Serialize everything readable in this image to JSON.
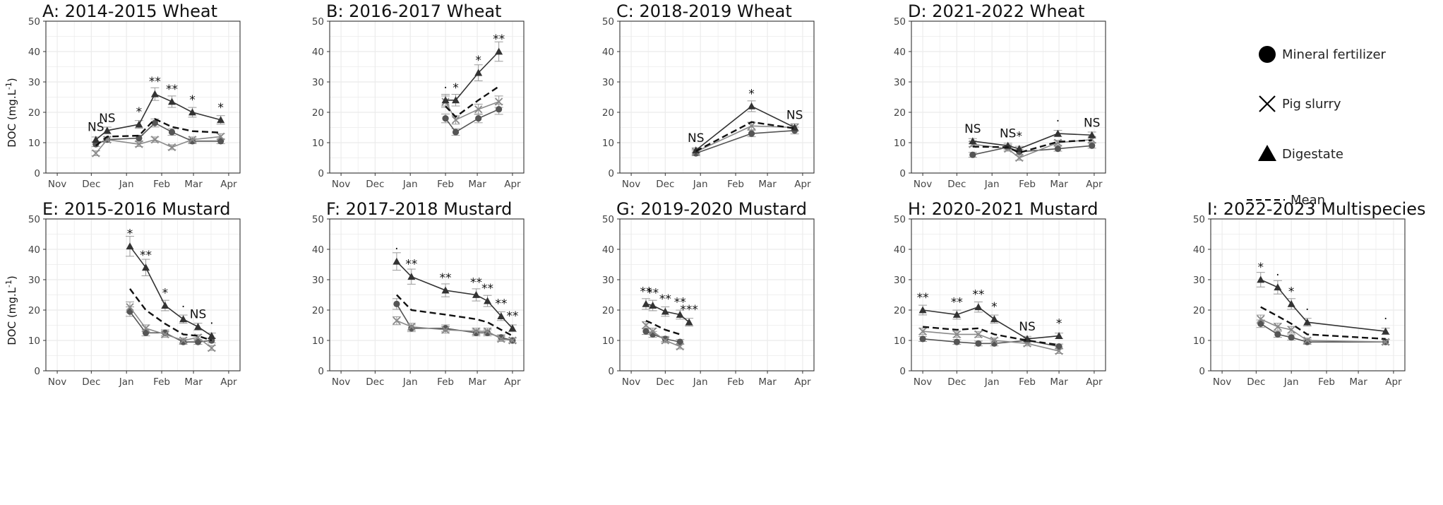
{
  "y_axis_label": "DOC (mg.L",
  "y_axis_label_sup": "-1",
  "y_axis_label_end": ")",
  "chart_data": [
    {
      "type": "line",
      "title": "A: 2014-2015 Wheat",
      "x_ticks": [
        "Nov",
        "Dec",
        "Jan",
        "Feb",
        "Mar",
        "Apr"
      ],
      "y_ticks": [
        "0",
        "10",
        "20",
        "30",
        "40",
        "50"
      ],
      "ylim": [
        0,
        50
      ],
      "grid": true,
      "x": [
        "2014-12-05",
        "2014-12-15",
        "2015-01-12",
        "2015-01-26",
        "2015-02-10",
        "2015-02-28",
        "2015-03-25"
      ],
      "series": [
        {
          "name": "Mineral fertilizer",
          "values": [
            9.5,
            11,
            11.5,
            16.5,
            13.5,
            10.5,
            10.5
          ]
        },
        {
          "name": "Pig slurry",
          "values": [
            6.5,
            11,
            9.5,
            11,
            8.5,
            11,
            12
          ]
        },
        {
          "name": "Digestate",
          "values": [
            11,
            14,
            16,
            26,
            23.5,
            20,
            17.5
          ]
        },
        {
          "name": "Mean",
          "values": [
            9,
            12,
            12.3,
            17.8,
            15.2,
            13.8,
            13.3
          ]
        }
      ],
      "significance": [
        "NS",
        "NS",
        "*",
        "**",
        "**",
        "*",
        "*"
      ]
    },
    {
      "type": "line",
      "title": "B: 2016-2017 Wheat",
      "x_ticks": [
        "Nov",
        "Dec",
        "Jan",
        "Feb",
        "Mar",
        "Apr"
      ],
      "y_ticks": [
        "0",
        "10",
        "20",
        "30",
        "40",
        "50"
      ],
      "ylim": [
        0,
        50
      ],
      "grid": true,
      "x": [
        "2017-02-01",
        "2017-02-10",
        "2017-03-02",
        "2017-03-20"
      ],
      "series": [
        {
          "name": "Mineral fertilizer",
          "values": [
            18,
            13.5,
            18,
            21
          ]
        },
        {
          "name": "Pig slurry",
          "values": [
            23.5,
            17.5,
            21,
            23.5
          ]
        },
        {
          "name": "Digestate",
          "values": [
            24,
            24,
            33,
            40
          ]
        },
        {
          "name": "Mean",
          "values": [
            22,
            18.5,
            24,
            28.5
          ]
        }
      ],
      "significance": [
        "·",
        "*",
        "*",
        "**"
      ]
    },
    {
      "type": "line",
      "title": "C: 2018-2019 Wheat",
      "x_ticks": [
        "Nov",
        "Dec",
        "Jan",
        "Feb",
        "Mar",
        "Apr"
      ],
      "y_ticks": [
        "0",
        "10",
        "20",
        "30",
        "40",
        "50"
      ],
      "ylim": [
        0,
        50
      ],
      "grid": true,
      "x": [
        "2018-12-28",
        "2019-02-15",
        "2019-03-25"
      ],
      "series": [
        {
          "name": "Mineral fertilizer",
          "values": [
            6.5,
            13,
            14
          ]
        },
        {
          "name": "Pig slurry",
          "values": [
            7,
            15.5,
            15
          ]
        },
        {
          "name": "Digestate",
          "values": [
            7.5,
            22,
            15
          ]
        },
        {
          "name": "Mean",
          "values": [
            7.2,
            16.8,
            14.7
          ]
        }
      ],
      "significance": [
        "NS",
        "*",
        "NS"
      ]
    },
    {
      "type": "line",
      "title": "D: 2021-2022 Wheat",
      "x_ticks": [
        "Nov",
        "Dec",
        "Jan",
        "Feb",
        "Mar",
        "Apr"
      ],
      "y_ticks": [
        "0",
        "10",
        "20",
        "30",
        "40",
        "50"
      ],
      "ylim": [
        0,
        50
      ],
      "grid": true,
      "x": [
        "2021-12-15",
        "2022-01-15",
        "2022-01-25",
        "2022-02-28",
        "2022-03-30"
      ],
      "series": [
        {
          "name": "Mineral fertilizer",
          "values": [
            6,
            8.5,
            7,
            8,
            9
          ]
        },
        {
          "name": "Pig slurry",
          "values": [
            9.5,
            8,
            5,
            10,
            11
          ]
        },
        {
          "name": "Digestate",
          "values": [
            10.5,
            9,
            8,
            13,
            12.5
          ]
        },
        {
          "name": "Mean",
          "values": [
            8.7,
            8.5,
            6.7,
            10.3,
            10.8
          ]
        }
      ],
      "significance": [
        "NS",
        "NS",
        "*",
        "·",
        "NS"
      ]
    },
    {
      "type": "line",
      "title": "E: 2015-2016 Mustard",
      "x_ticks": [
        "Nov",
        "Dec",
        "Jan",
        "Feb",
        "Mar",
        "Apr"
      ],
      "y_ticks": [
        "0",
        "10",
        "20",
        "30",
        "40",
        "50"
      ],
      "ylim": [
        0,
        50
      ],
      "grid": true,
      "x": [
        "2016-01-04",
        "2016-01-18",
        "2016-02-04",
        "2016-02-20",
        "2016-03-04",
        "2016-03-16"
      ],
      "series": [
        {
          "name": "Mineral fertilizer",
          "values": [
            19.5,
            12.5,
            12.5,
            9.5,
            9.5,
            10
          ]
        },
        {
          "name": "Pig slurry",
          "values": [
            21,
            14,
            12,
            10,
            11,
            7.5
          ]
        },
        {
          "name": "Digestate",
          "values": [
            41,
            34,
            21.5,
            17,
            14.5,
            11.5
          ]
        },
        {
          "name": "Mean",
          "values": [
            27,
            20,
            15.5,
            12,
            11.5,
            10
          ]
        }
      ],
      "significance": [
        "*",
        "**",
        "*",
        "·",
        "NS",
        "·"
      ]
    },
    {
      "type": "line",
      "title": "F: 2017-2018 Mustard",
      "x_ticks": [
        "Nov",
        "Dec",
        "Jan",
        "Feb",
        "Mar",
        "Apr"
      ],
      "y_ticks": [
        "0",
        "10",
        "20",
        "30",
        "40",
        "50"
      ],
      "ylim": [
        0,
        50
      ],
      "grid": true,
      "x": [
        "2017-12-20",
        "2018-01-02",
        "2018-02-01",
        "2018-02-28",
        "2018-03-10",
        "2018-03-22",
        "2018-04-01"
      ],
      "series": [
        {
          "name": "Mineral fertilizer",
          "values": [
            22,
            14,
            14,
            12.5,
            12.5,
            11,
            10
          ]
        },
        {
          "name": "Pig slurry",
          "values": [
            16.5,
            14.5,
            13.5,
            13,
            13,
            10.5,
            10
          ]
        },
        {
          "name": "Digestate",
          "values": [
            36,
            31,
            26.5,
            25,
            23,
            18,
            14
          ]
        },
        {
          "name": "Mean",
          "values": [
            25,
            20,
            18.5,
            17,
            16,
            13.5,
            11.5
          ]
        }
      ],
      "significance": [
        "·",
        "**",
        "**",
        "**",
        "**",
        "**",
        "**"
      ]
    },
    {
      "type": "line",
      "title": "G: 2019-2020 Mustard",
      "x_ticks": [
        "Nov",
        "Dec",
        "Jan",
        "Feb",
        "Mar",
        "Apr"
      ],
      "y_ticks": [
        "0",
        "10",
        "20",
        "30",
        "40",
        "50"
      ],
      "ylim": [
        0,
        50
      ],
      "grid": true,
      "x": [
        "2019-11-14",
        "2019-11-20",
        "2019-12-01",
        "2019-12-14",
        "2019-12-22"
      ],
      "series": [
        {
          "name": "Mineral fertilizer",
          "values": [
            13,
            12,
            10.5,
            9.5,
            null
          ]
        },
        {
          "name": "Pig slurry",
          "values": [
            15,
            13,
            10,
            8,
            null
          ]
        },
        {
          "name": "Digestate",
          "values": [
            22,
            21.5,
            19.5,
            18.5,
            16
          ]
        },
        {
          "name": "Mean",
          "values": [
            16.5,
            15.5,
            13.5,
            12,
            null
          ]
        }
      ],
      "significance": [
        "**",
        "**",
        "**",
        "**",
        "***"
      ]
    },
    {
      "type": "line",
      "title": "H: 2020-2021 Mustard",
      "x_ticks": [
        "Nov",
        "Dec",
        "Jan",
        "Feb",
        "Mar",
        "Apr"
      ],
      "y_ticks": [
        "0",
        "10",
        "20",
        "30",
        "40",
        "50"
      ],
      "ylim": [
        0,
        50
      ],
      "grid": true,
      "x": [
        "2020-11-01",
        "2020-12-01",
        "2020-12-20",
        "2021-01-03",
        "2021-02-01",
        "2021-03-01"
      ],
      "series": [
        {
          "name": "Mineral fertilizer",
          "values": [
            10.5,
            9.5,
            9,
            9,
            10,
            8
          ]
        },
        {
          "name": "Pig slurry",
          "values": [
            13,
            12,
            12,
            10,
            9,
            6.5
          ]
        },
        {
          "name": "Digestate",
          "values": [
            20,
            18.5,
            21,
            17,
            10.5,
            11.5
          ]
        },
        {
          "name": "Mean",
          "values": [
            14.5,
            13.5,
            14,
            12,
            10,
            8.5
          ]
        }
      ],
      "significance": [
        "**",
        "**",
        "**",
        "*",
        "NS",
        "*"
      ]
    },
    {
      "type": "line",
      "title": "I: 2022-2023 Multispecies",
      "x_ticks": [
        "Nov",
        "Dec",
        "Jan",
        "Feb",
        "Mar",
        "Apr"
      ],
      "y_ticks": [
        "0",
        "10",
        "20",
        "30",
        "40",
        "50"
      ],
      "ylim": [
        0,
        50
      ],
      "grid": true,
      "x": [
        "2022-12-05",
        "2022-12-20",
        "2023-01-01",
        "2023-01-15",
        "2023-03-25"
      ],
      "series": [
        {
          "name": "Mineral fertilizer",
          "values": [
            15.5,
            12,
            11,
            9.5,
            9.5
          ]
        },
        {
          "name": "Pig slurry",
          "values": [
            17,
            14.5,
            13.5,
            10,
            9.5
          ]
        },
        {
          "name": "Digestate",
          "values": [
            30,
            27.5,
            22,
            16,
            13
          ]
        },
        {
          "name": "Mean",
          "values": [
            21,
            18,
            15.5,
            12,
            10.5
          ]
        }
      ],
      "significance": [
        "*",
        "·",
        "*",
        "·",
        "·"
      ]
    }
  ],
  "legend": {
    "position": "right",
    "items": [
      {
        "label": "Mineral fertilizer",
        "marker": "circle-icon"
      },
      {
        "label": "Pig slurry",
        "marker": "cross-icon"
      },
      {
        "label": "Digestate",
        "marker": "triangle-icon"
      },
      {
        "label": "Mean",
        "marker": "dashed-line-icon"
      }
    ]
  },
  "colors": {
    "mineral": "#555555",
    "pig": "#8a8a8a",
    "digestate": "#333333",
    "mean": "#111111",
    "grid": "#ebebeb",
    "axis": "#333333"
  }
}
